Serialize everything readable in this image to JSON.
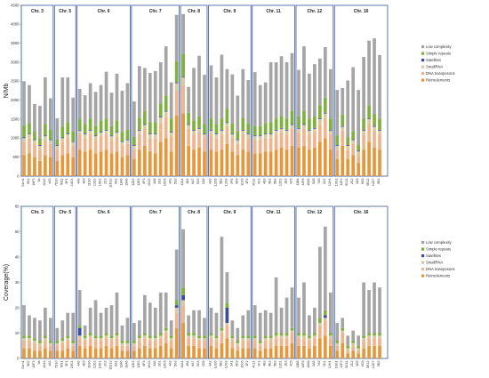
{
  "colors": {
    "Retroelements": "#e8963a",
    "DNA transposons": "#f0b48c",
    "SmallRNA": "#d9c9a0",
    "Satellites": "#3c4d9e",
    "Simple repeats": "#7fb040",
    "Low complexity": "#a5a5a5",
    "group_border": "#3a5a9a"
  },
  "chart_data": [
    {
      "type": "bar",
      "stacked": true,
      "ylabel": "N/Mb",
      "ylim": [
        0,
        4500
      ],
      "yticks": [
        0,
        500,
        1000,
        1500,
        2000,
        2500,
        3000,
        3500,
        4000,
        4500
      ],
      "grid": false,
      "legend_position": "right",
      "legend": [
        "Low complexity",
        "Simple repeats",
        "Satellites",
        "SmallRNA",
        "DNA transposons",
        "Retroelements"
      ],
      "groups": [
        {
          "label": "Chr. 3",
          "count": 6
        },
        {
          "label": "Chr. 5",
          "count": 4
        },
        {
          "label": "Chr. 6",
          "count": 10
        },
        {
          "label": "Chr. 7",
          "count": 9
        },
        {
          "label": "Chr. 8",
          "count": 5
        },
        {
          "label": "Chr. 9",
          "count": 8
        },
        {
          "label": "Chr. 11",
          "count": 8
        },
        {
          "label": "Chr. 12",
          "count": 7
        },
        {
          "label": "Chr. 16",
          "count": 10
        }
      ],
      "categories": [
        "S4m1",
        "9G2",
        "10F3",
        "9a",
        "4A13",
        "4A3",
        "7D10",
        "7B11",
        "5F1",
        "10C4",
        "4A6",
        "4E9",
        "11G6",
        "12D2",
        "10G1",
        "2C2",
        "11D12",
        "6A1",
        "11A6",
        "10A6",
        "12E2",
        "12E3",
        "6F3",
        "4H23",
        "3A6",
        "3G1",
        "10C5",
        "4A3",
        "5G2",
        "11A1",
        "4B1",
        "6A7",
        "5C6",
        "1D8",
        "4A2",
        "12G5",
        "5B2",
        "12G3",
        "3A1",
        "9D9",
        "11C6",
        "3F2",
        "4C11",
        "4C1",
        "4B3",
        "9E2",
        "5B3",
        "12D1",
        "1E2",
        "4C5",
        "11B6",
        "12F8",
        "10A6",
        "5A5",
        "7A5",
        "3C4",
        "12H1",
        "10G1",
        "12F2",
        "9C11",
        "2C2",
        "3D5",
        "6C8",
        "5E12",
        "12D7",
        "5B2"
      ],
      "series": [
        {
          "name": "Retroelements",
          "values": [
            550,
            600,
            500,
            400,
            550,
            500,
            400,
            550,
            600,
            500,
            700,
            650,
            700,
            600,
            650,
            700,
            600,
            650,
            500,
            550,
            450,
            700,
            800,
            650,
            600,
            900,
            1000,
            650,
            1600,
            1650,
            800,
            700,
            750,
            650,
            700,
            650,
            700,
            850,
            650,
            550,
            700,
            650,
            600,
            600,
            650,
            650,
            700,
            750,
            700,
            800,
            750,
            800,
            700,
            750,
            900,
            1000,
            700,
            450,
            800,
            450,
            550,
            350,
            700,
            900,
            750,
            700
          ]
        },
        {
          "name": "DNA transposons",
          "values": [
            350,
            400,
            350,
            300,
            400,
            350,
            300,
            350,
            400,
            300,
            400,
            350,
            400,
            350,
            400,
            400,
            350,
            400,
            300,
            300,
            250,
            400,
            450,
            350,
            400,
            500,
            550,
            400,
            650,
            750,
            450,
            400,
            400,
            350,
            400,
            350,
            400,
            450,
            350,
            300,
            400,
            350,
            350,
            350,
            350,
            350,
            400,
            400,
            400,
            450,
            400,
            450,
            400,
            400,
            450,
            500,
            400,
            250,
            400,
            250,
            300,
            200,
            400,
            500,
            450,
            400
          ]
        },
        {
          "name": "SmallRNA",
          "values": [
            100,
            100,
            100,
            100,
            100,
            100,
            100,
            100,
            100,
            100,
            100,
            100,
            100,
            100,
            100,
            100,
            100,
            100,
            100,
            100,
            100,
            100,
            100,
            100,
            100,
            150,
            150,
            100,
            200,
            200,
            100,
            100,
            100,
            100,
            100,
            100,
            100,
            100,
            100,
            100,
            100,
            100,
            100,
            100,
            100,
            100,
            100,
            100,
            100,
            100,
            100,
            100,
            100,
            100,
            150,
            150,
            100,
            100,
            100,
            100,
            100,
            100,
            100,
            100,
            100,
            100
          ]
        },
        {
          "name": "Satellites",
          "values": [
            20,
            20,
            20,
            20,
            20,
            20,
            20,
            20,
            20,
            20,
            20,
            20,
            20,
            20,
            20,
            20,
            20,
            20,
            20,
            20,
            20,
            20,
            20,
            20,
            20,
            20,
            20,
            20,
            20,
            20,
            20,
            20,
            20,
            20,
            20,
            20,
            20,
            20,
            20,
            20,
            20,
            20,
            20,
            20,
            20,
            20,
            20,
            20,
            20,
            20,
            20,
            20,
            20,
            20,
            20,
            20,
            20,
            20,
            20,
            20,
            20,
            20,
            20,
            20,
            20,
            20
          ]
        },
        {
          "name": "Simple repeats",
          "values": [
            320,
            280,
            200,
            180,
            300,
            250,
            150,
            280,
            300,
            250,
            300,
            250,
            300,
            250,
            300,
            300,
            250,
            300,
            250,
            250,
            220,
            320,
            350,
            300,
            300,
            350,
            400,
            350,
            550,
            600,
            300,
            250,
            300,
            250,
            300,
            250,
            300,
            350,
            280,
            220,
            320,
            280,
            250,
            250,
            280,
            300,
            300,
            320,
            300,
            350,
            300,
            350,
            300,
            300,
            350,
            400,
            300,
            250,
            300,
            200,
            220,
            150,
            300,
            350,
            320,
            300
          ]
        },
        {
          "name": "Low complexity",
          "values": [
            1160,
            1000,
            730,
            850,
            1230,
            830,
            550,
            1300,
            1180,
            900,
            780,
            760,
            930,
            900,
            930,
            1230,
            880,
            1230,
            1080,
            1230,
            930,
            1360,
            1130,
            1300,
            1350,
            1080,
            1300,
            950,
            1230,
            1050,
            680,
            1380,
            1600,
            1300,
            1400,
            1230,
            1680,
            1050,
            1280,
            930,
            1280,
            1130,
            1420,
            1080,
            1070,
            1580,
            1480,
            1570,
            1480,
            1520,
            1230,
            1700,
            1180,
            1380,
            1230,
            1330,
            1300,
            1200,
            700,
            1500,
            1680,
            1450,
            1620,
            1700,
            1990,
            1670
          ]
        }
      ]
    },
    {
      "type": "bar",
      "stacked": true,
      "ylabel": "Coverage(%)",
      "ylim": [
        0,
        60
      ],
      "yticks": [
        0,
        10,
        20,
        30,
        40,
        50,
        60
      ],
      "grid": false,
      "legend_position": "right",
      "legend": [
        "Low complexity",
        "Simple repeats",
        "Satellites",
        "SmallRNA",
        "DNA transposons",
        "Retroelements"
      ],
      "groups": [
        {
          "label": "Chr. 3",
          "count": 6
        },
        {
          "label": "Chr. 5",
          "count": 4
        },
        {
          "label": "Chr. 6",
          "count": 10
        },
        {
          "label": "Chr. 7",
          "count": 9
        },
        {
          "label": "Chr. 8",
          "count": 5
        },
        {
          "label": "Chr. 9",
          "count": 8
        },
        {
          "label": "Chr. 11",
          "count": 8
        },
        {
          "label": "Chr. 12",
          "count": 7
        },
        {
          "label": "Chr. 16",
          "count": 10
        }
      ],
      "categories": [
        "S4m1",
        "9G2",
        "10F3",
        "9a",
        "4A13",
        "4A3",
        "7D10",
        "7B11",
        "5F1",
        "10C4",
        "4A6",
        "4E9",
        "11G6",
        "12D2",
        "10G1",
        "2C2",
        "11D12",
        "6A1",
        "11A6",
        "10A6",
        "12E2",
        "12E3",
        "6F3",
        "4H23",
        "3A6",
        "3G1",
        "10C5",
        "4A3",
        "5G2",
        "11A1",
        "4B1",
        "6A7",
        "5C6",
        "1D8",
        "4A2",
        "12G5",
        "5B2",
        "12G3",
        "3A1",
        "9D9",
        "11C6",
        "3F2",
        "4C11",
        "4C1",
        "4B3",
        "9E2",
        "5B3",
        "12D1",
        "1E2",
        "4C5",
        "11B6",
        "12F8",
        "10A6",
        "5A5",
        "7A5",
        "3C4",
        "12H1",
        "10G1",
        "12F2",
        "9C11",
        "2C2",
        "3D5",
        "6C8",
        "5E12",
        "12D7",
        "5B2"
      ],
      "series": [
        {
          "name": "Retroelements",
          "values": [
            4,
            4,
            3,
            3,
            4,
            3,
            3,
            3,
            4,
            3,
            5,
            4,
            5,
            4,
            4,
            5,
            4,
            5,
            3,
            3,
            3,
            4,
            5,
            4,
            4,
            5,
            6,
            4,
            12,
            14,
            5,
            5,
            4,
            4,
            5,
            4,
            6,
            8,
            4,
            3,
            4,
            4,
            4,
            3,
            4,
            4,
            5,
            5,
            5,
            6,
            5,
            5,
            4,
            5,
            8,
            9,
            5,
            3,
            6,
            2,
            3,
            2,
            4,
            5,
            5,
            5
          ]
        },
        {
          "name": "DNA transposons",
          "values": [
            3,
            3,
            3,
            2,
            3,
            2,
            2,
            3,
            3,
            2,
            3,
            3,
            3,
            3,
            3,
            3,
            3,
            3,
            2,
            2,
            2,
            3,
            3,
            3,
            3,
            3,
            4,
            3,
            6,
            7,
            3,
            3,
            3,
            3,
            3,
            3,
            4,
            5,
            3,
            2,
            3,
            3,
            3,
            2,
            3,
            3,
            3,
            3,
            3,
            4,
            3,
            3,
            3,
            3,
            5,
            6,
            3,
            2,
            4,
            1,
            2,
            1,
            3,
            3,
            3,
            3
          ]
        },
        {
          "name": "SmallRNA",
          "values": [
            1,
            1,
            1,
            1,
            1,
            1,
            1,
            1,
            1,
            1,
            1,
            1,
            1,
            1,
            1,
            1,
            1,
            1,
            1,
            1,
            1,
            1,
            1,
            1,
            1,
            1,
            1,
            1,
            2,
            2,
            1,
            1,
            1,
            1,
            1,
            1,
            1,
            1,
            1,
            1,
            1,
            1,
            1,
            1,
            1,
            1,
            1,
            1,
            1,
            1,
            1,
            1,
            1,
            1,
            1,
            1,
            1,
            1,
            1,
            1,
            1,
            1,
            1,
            1,
            1,
            1
          ]
        },
        {
          "name": "Satellites",
          "values": [
            0,
            0,
            0,
            0,
            0,
            0,
            0,
            0,
            0,
            0,
            3,
            0,
            0,
            0,
            0,
            0,
            0,
            0,
            0,
            0,
            0,
            0,
            0,
            0,
            0,
            0,
            0,
            0,
            1,
            2,
            0,
            0,
            0,
            0,
            0,
            0,
            0,
            6,
            0,
            0,
            0,
            0,
            0,
            0,
            0,
            0,
            0,
            0,
            0,
            0,
            0,
            0,
            0,
            0,
            0,
            1,
            0,
            0,
            0,
            0,
            0,
            0,
            0,
            0,
            0,
            0
          ]
        },
        {
          "name": "Simple repeats",
          "values": [
            1,
            1,
            1,
            1,
            1,
            1,
            1,
            1,
            1,
            1,
            1,
            1,
            1,
            1,
            1,
            1,
            1,
            1,
            1,
            1,
            1,
            1,
            1,
            1,
            1,
            1,
            1,
            1,
            2,
            3,
            1,
            1,
            1,
            1,
            1,
            1,
            1,
            2,
            1,
            1,
            1,
            1,
            1,
            1,
            1,
            1,
            1,
            1,
            1,
            1,
            1,
            1,
            1,
            1,
            2,
            2,
            1,
            1,
            1,
            1,
            1,
            1,
            1,
            1,
            1,
            1
          ]
        },
        {
          "name": "Low complexity",
          "values": [
            12,
            8,
            8,
            8,
            11,
            9,
            5,
            7,
            9,
            11,
            14,
            4,
            10,
            14,
            9,
            10,
            12,
            16,
            6,
            9,
            7,
            6,
            15,
            13,
            11,
            16,
            14,
            6,
            20,
            23,
            7,
            9,
            10,
            7,
            10,
            9,
            36,
            12,
            6,
            5,
            8,
            10,
            12,
            11,
            10,
            9,
            22,
            10,
            14,
            16,
            14,
            20,
            8,
            10,
            28,
            33,
            16,
            7,
            4,
            4,
            4,
            4,
            21,
            17,
            20,
            18
          ]
        }
      ]
    }
  ]
}
